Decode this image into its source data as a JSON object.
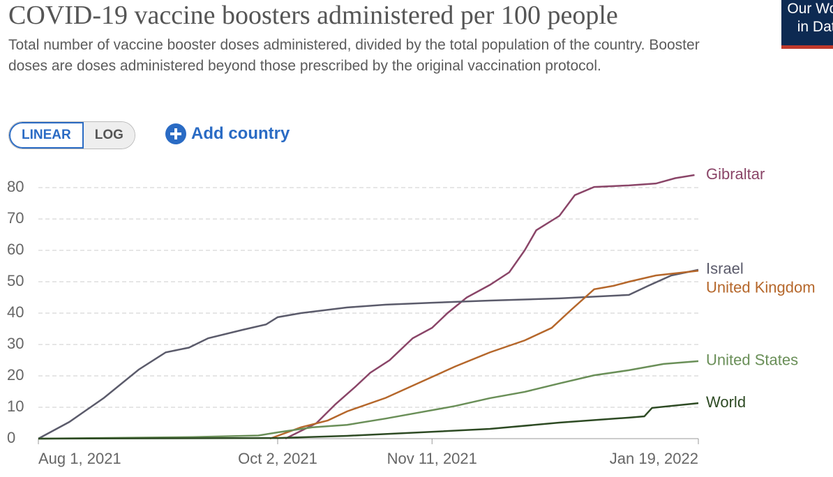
{
  "chart_data": {
    "type": "line",
    "title": "COVID-19 vaccine boosters administered per 100 people",
    "subtitle": "Total number of vaccine booster doses administered, divided by the total population of the country. Booster doses are doses administered beyond those prescribed by the original vaccination protocol.",
    "xlim": [
      "2021-08-01",
      "2022-01-19"
    ],
    "xticks": [
      {
        "value": "2021-08-01",
        "label": "Aug 1, 2021"
      },
      {
        "value": "2021-10-02",
        "label": "Oct 2, 2021"
      },
      {
        "value": "2021-11-11",
        "label": "Nov 11, 2021"
      },
      {
        "value": "2022-01-19",
        "label": "Jan 19, 2022"
      }
    ],
    "ylim": [
      0,
      84
    ],
    "yticks": [
      0,
      10,
      20,
      30,
      40,
      50,
      60,
      70,
      80
    ],
    "grid": true,
    "series": [
      {
        "name": "Gibraltar",
        "color": "#8a4568",
        "x": [
          "2021-10-04",
          "2021-10-12",
          "2021-10-17",
          "2021-10-22",
          "2021-10-26",
          "2021-10-31",
          "2021-11-06",
          "2021-11-11",
          "2021-11-15",
          "2021-11-20",
          "2021-11-26",
          "2021-12-01",
          "2021-12-05",
          "2021-12-08",
          "2021-12-14",
          "2021-12-18",
          "2021-12-23",
          "2022-01-01",
          "2022-01-08",
          "2022-01-13",
          "2022-01-18"
        ],
        "values": [
          0,
          4.9,
          11,
          16.4,
          21,
          25,
          32,
          35.3,
          40,
          45,
          49,
          53,
          60,
          66.4,
          71,
          77.6,
          80.2,
          80.7,
          81.3,
          83,
          84
        ]
      },
      {
        "name": "Israel",
        "color": "#5b5b6b",
        "x": [
          "2021-08-01",
          "2021-08-09",
          "2021-08-18",
          "2021-08-27",
          "2021-09-03",
          "2021-09-09",
          "2021-09-14",
          "2021-09-23",
          "2021-09-29",
          "2021-10-02",
          "2021-10-08",
          "2021-10-20",
          "2021-10-30",
          "2021-11-11",
          "2021-11-26",
          "2021-12-14",
          "2022-01-01",
          "2022-01-06",
          "2022-01-12",
          "2022-01-19"
        ],
        "values": [
          0,
          5.3,
          13,
          22,
          27.5,
          29,
          32,
          34.7,
          36.4,
          38.7,
          40,
          41.8,
          42.7,
          43.3,
          44,
          44.7,
          45.8,
          48.7,
          52,
          53.8
        ]
      },
      {
        "name": "United Kingdom",
        "color": "#b5672b",
        "x": [
          "2021-09-30",
          "2021-10-08",
          "2021-10-15",
          "2021-10-20",
          "2021-10-30",
          "2021-11-08",
          "2021-11-17",
          "2021-11-26",
          "2021-12-05",
          "2021-12-12",
          "2021-12-17",
          "2021-12-23",
          "2021-12-28",
          "2022-01-01",
          "2022-01-08",
          "2022-01-19"
        ],
        "values": [
          0,
          3.6,
          5.8,
          8.7,
          13,
          18,
          23,
          27.5,
          31.3,
          35.3,
          41,
          47.6,
          48.7,
          50,
          52,
          53.5
        ]
      },
      {
        "name": "United States",
        "color": "#6a8f58",
        "x": [
          "2021-08-01",
          "2021-09-10",
          "2021-09-27",
          "2021-10-02",
          "2021-10-11",
          "2021-10-20",
          "2021-10-30",
          "2021-11-08",
          "2021-11-17",
          "2021-11-26",
          "2021-12-05",
          "2021-12-14",
          "2021-12-23",
          "2022-01-01",
          "2022-01-10",
          "2022-01-19"
        ],
        "values": [
          0,
          0.5,
          1,
          2,
          3.6,
          4.4,
          6.4,
          8.4,
          10.4,
          12.9,
          14.9,
          17.6,
          20.2,
          21.8,
          23.8,
          24.7
        ]
      },
      {
        "name": "World",
        "color": "#2d4a23",
        "x": [
          "2021-08-01",
          "2021-10-02",
          "2021-10-20",
          "2021-11-08",
          "2021-11-26",
          "2021-12-14",
          "2022-01-01",
          "2022-01-05",
          "2022-01-07",
          "2022-01-19"
        ],
        "values": [
          0,
          0.2,
          0.9,
          2,
          3.1,
          5.1,
          6.7,
          7.1,
          9.8,
          11.3
        ]
      }
    ]
  },
  "controls": {
    "linear": "LINEAR",
    "log": "LOG",
    "add": "Add country"
  },
  "logo": [
    "Our World",
    "in Data"
  ]
}
